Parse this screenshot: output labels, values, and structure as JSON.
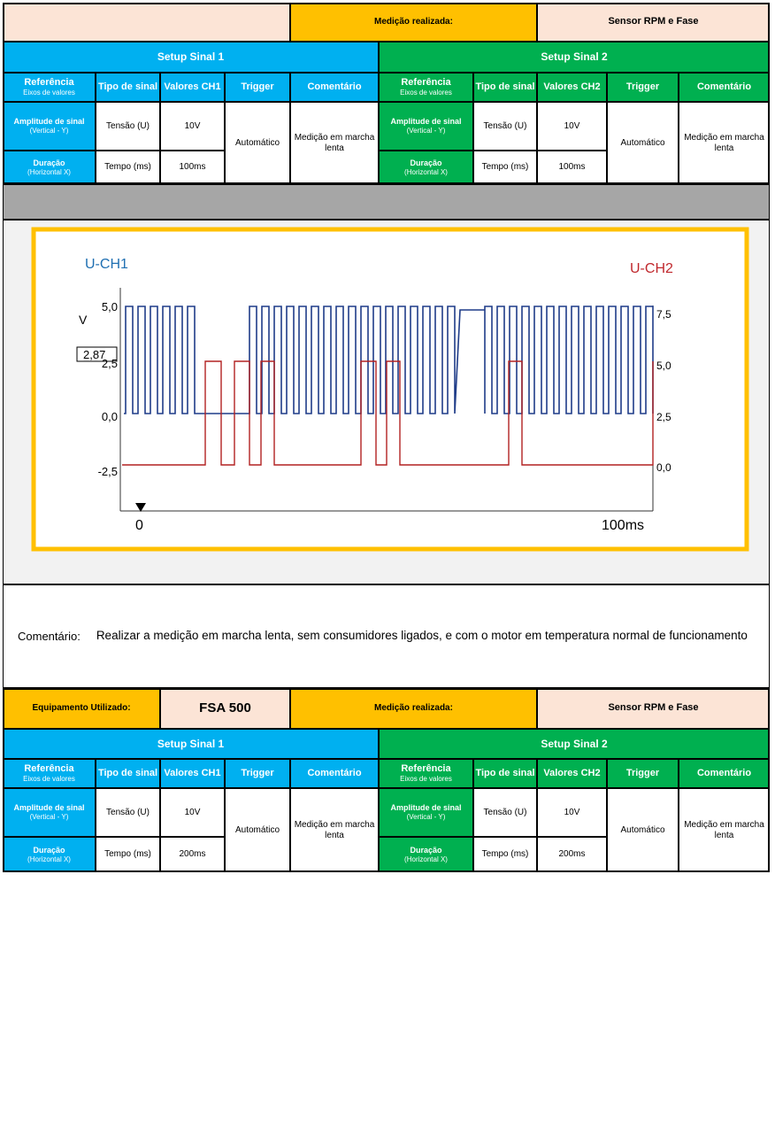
{
  "section1": {
    "measurement_label": "Medição realizada:",
    "measurement_value": "Sensor RPM e Fase",
    "setups": [
      {
        "title": "Setup Sinal 1",
        "headers": [
          {
            "title": "Referência",
            "subtitle": "Eixos de valores"
          },
          {
            "title": "Tipo de sinal"
          },
          {
            "title": "Valores CH1"
          },
          {
            "title": "Trigger"
          },
          {
            "title": "Comentário"
          }
        ],
        "rows": [
          {
            "reference": {
              "title": "Amplitude de sinal",
              "subtitle": "(Vertical - Y)"
            },
            "type": "Tensão (U)",
            "value": "10V"
          },
          {
            "reference": {
              "title": "Duração",
              "subtitle": "(Horizontal X)"
            },
            "type": "Tempo (ms)",
            "value": "100ms"
          }
        ],
        "trigger": "Automático",
        "comment": "Medição em marcha lenta"
      },
      {
        "title": "Setup Sinal 2",
        "headers": [
          {
            "title": "Referência",
            "subtitle": "Eixos de valores"
          },
          {
            "title": "Tipo de sinal"
          },
          {
            "title": "Valores CH2"
          },
          {
            "title": "Trigger"
          },
          {
            "title": "Comentário"
          }
        ],
        "rows": [
          {
            "reference": {
              "title": "Amplitude de sinal",
              "subtitle": "(Vertical - Y)"
            },
            "type": "Tensão (U)",
            "value": "10V"
          },
          {
            "reference": {
              "title": "Duração",
              "subtitle": "(Horizontal X)"
            },
            "type": "Tempo (ms)",
            "value": "100ms"
          }
        ],
        "trigger": "Automático",
        "comment": "Medição em marcha lenta"
      }
    ]
  },
  "scope": {
    "channel1": "U-CH1",
    "channel2": "U-CH2",
    "unit": "V",
    "cursor": "2,87",
    "left_ticks": [
      "5,0",
      "2,5",
      "0,0",
      "-2,5"
    ],
    "right_ticks": [
      "7,5",
      "5,0",
      "2,5",
      "0,0"
    ],
    "time_start": "0",
    "time_end": "100ms"
  },
  "comment": {
    "label": "Comentário:",
    "text": "Realizar a medição em marcha lenta, sem consumidores ligados, e com o motor em temperatura normal de funcionamento"
  },
  "section2": {
    "equipment_label": "Equipamento Utilizado:",
    "equipment_value": "FSA 500",
    "measurement_label": "Medição realizada:",
    "measurement_value": "Sensor RPM e Fase",
    "setups": [
      {
        "title": "Setup Sinal 1",
        "headers": [
          {
            "title": "Referência",
            "subtitle": "Eixos de valores"
          },
          {
            "title": "Tipo de sinal"
          },
          {
            "title": "Valores CH1"
          },
          {
            "title": "Trigger"
          },
          {
            "title": "Comentário"
          }
        ],
        "rows": [
          {
            "reference": {
              "title": "Amplitude de sinal",
              "subtitle": "(Vertical - Y)"
            },
            "type": "Tensão (U)",
            "value": "10V"
          },
          {
            "reference": {
              "title": "Duração",
              "subtitle": "(Horizontal X)"
            },
            "type": "Tempo (ms)",
            "value": "200ms"
          }
        ],
        "trigger": "Automático",
        "comment": "Medição em marcha lenta"
      },
      {
        "title": "Setup Sinal 2",
        "headers": [
          {
            "title": "Referência",
            "subtitle": "Eixos de valores"
          },
          {
            "title": "Tipo de sinal"
          },
          {
            "title": "Valores CH2"
          },
          {
            "title": "Trigger"
          },
          {
            "title": "Comentário"
          }
        ],
        "rows": [
          {
            "reference": {
              "title": "Amplitude de sinal",
              "subtitle": "(Vertical - Y)"
            },
            "type": "Tensão (U)",
            "value": "10V"
          },
          {
            "reference": {
              "title": "Duração",
              "subtitle": "(Horizontal X)"
            },
            "type": "Tempo (ms)",
            "value": "200ms"
          }
        ],
        "trigger": "Automático",
        "comment": "Medição em marcha lenta"
      }
    ]
  }
}
